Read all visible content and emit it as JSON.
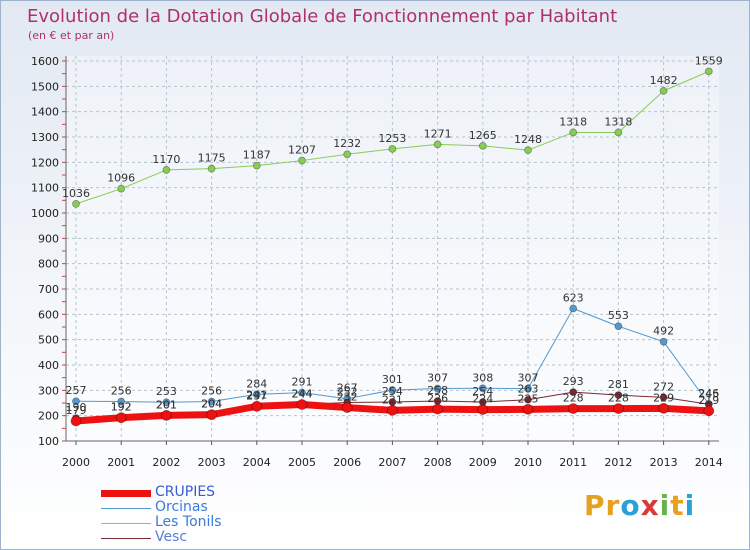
{
  "title": "Evolution de la Dotation Globale de Fonctionnement par Habitant",
  "subtitle": "(en € et par an)",
  "logo_text": "Proxiti",
  "chart_data": {
    "type": "line",
    "title": "Evolution de la Dotation Globale de Fonctionnement par Habitant",
    "subtitle": "(en € et par an)",
    "xlabel": "",
    "ylabel": "",
    "ylim": [
      100,
      1600
    ],
    "yticks": [
      100,
      200,
      300,
      400,
      500,
      600,
      700,
      800,
      900,
      1000,
      1100,
      1200,
      1300,
      1400,
      1500,
      1600
    ],
    "grid": true,
    "legend_position": "bottom-left",
    "categories": [
      "2000",
      "2001",
      "2002",
      "2003",
      "2004",
      "2005",
      "2006",
      "2007",
      "2008",
      "2009",
      "2010",
      "2011",
      "2012",
      "2013",
      "2014"
    ],
    "series": [
      {
        "name": "Les Tonils",
        "color": "#88cc55",
        "line_width": 1,
        "values": [
          1036,
          1096,
          1170,
          1175,
          1187,
          1207,
          1232,
          1253,
          1271,
          1265,
          1248,
          1318,
          1318,
          1482,
          1559
        ],
        "labels": [
          "1036",
          "1096",
          "1170",
          "1175",
          "1187",
          "1207",
          "1232",
          "1253",
          "1271",
          "1265",
          "1248",
          "1318",
          "1318",
          "1482",
          "1559"
        ]
      },
      {
        "name": "Orcinas",
        "color": "#5599cc",
        "line_width": 1,
        "values": [
          257,
          256,
          253,
          256,
          284,
          291,
          267,
          301,
          307,
          308,
          307,
          623,
          553,
          492,
          246
        ],
        "labels": [
          "257",
          "256",
          "253",
          "256",
          "284",
          "291",
          "267",
          "301",
          "307",
          "308",
          "307",
          "623",
          "553",
          "492",
          "246"
        ]
      },
      {
        "name": "Vesc",
        "color": "#7a2a32",
        "line_width": 1,
        "values": [
          190,
          192,
          201,
          204,
          241,
          244,
          252,
          254,
          258,
          254,
          263,
          293,
          281,
          272,
          245
        ],
        "labels": [
          "190",
          "192",
          "201",
          "204",
          "241",
          "244",
          "252",
          "254",
          "258",
          "254",
          "263",
          "293",
          "281",
          "272",
          "245"
        ]
      },
      {
        "name": "CRUPIES",
        "color": "#ee1111",
        "line_width": 7,
        "values": [
          179,
          192,
          201,
          204,
          237,
          244,
          232,
          221,
          226,
          224,
          225,
          228,
          228,
          229,
          219
        ],
        "labels": [
          "179",
          "192",
          "201",
          "204",
          "237",
          "244",
          "232",
          "221",
          "226",
          "224",
          "225",
          "228",
          "228",
          "229",
          "219"
        ]
      }
    ],
    "legend_order": [
      "CRUPIES",
      "Orcinas",
      "Les Tonils",
      "Vesc"
    ]
  }
}
